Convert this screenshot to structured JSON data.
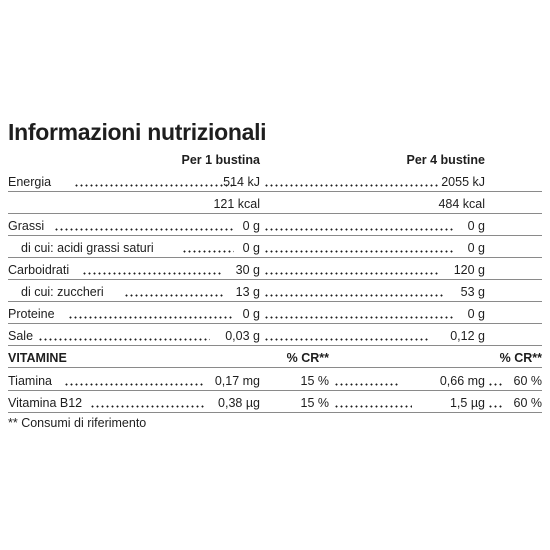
{
  "title": "Informazioni nutrizionali",
  "headers": {
    "per_1": "Per 1 bustina",
    "per_4": "Per 4 bustine"
  },
  "rows": {
    "energia": {
      "label": "Energia",
      "v1": "514 kJ",
      "v4": "2055 kJ"
    },
    "kcal": {
      "v1": "121 kcal",
      "v4": "484 kcal"
    },
    "grassi": {
      "label": "Grassi",
      "v1": "0 g",
      "v4": "0 g"
    },
    "saturi": {
      "label": "di cui: acidi grassi saturi",
      "v1": "0 g",
      "v4": "0 g"
    },
    "carboidrati": {
      "label": "Carboidrati",
      "v1": "30 g",
      "v4": "120 g"
    },
    "zuccheri": {
      "label": "di cui: zuccheri",
      "v1": "13 g",
      "v4": "53 g"
    },
    "proteine": {
      "label": "Proteine",
      "v1": "0 g",
      "v4": "0 g"
    },
    "sale": {
      "label": "Sale",
      "v1": "0,03 g",
      "v4": "0,12 g"
    }
  },
  "vitamins": {
    "heading": "VITAMINE",
    "cr_label_1": "% CR**",
    "cr_label_4": "% CR**",
    "items": {
      "tiamina": {
        "label": "Tiamina",
        "v1": "0,17 mg",
        "cr1": "15 %",
        "v4": "0,66 mg",
        "cr4": "60 %"
      },
      "b12": {
        "label": "Vitamina B12",
        "v1": "0,38 µg",
        "cr1": "15 %",
        "v4": "1,5 µg",
        "cr4": "60 %"
      }
    }
  },
  "footnote": "** Consumi di riferimento"
}
